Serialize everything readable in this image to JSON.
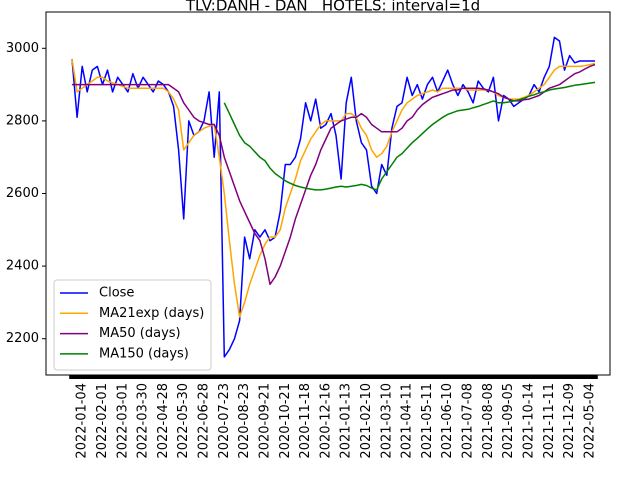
{
  "chart_data": {
    "type": "line",
    "title": "TLV:DANH - DAN   HOTELS: interval=1d",
    "categories": [
      null,
      null,
      "2022-01-04",
      null,
      null,
      null,
      "2022-02-01",
      null,
      null,
      null,
      "2022-03-01",
      null,
      null,
      null,
      "2022-03-30",
      null,
      null,
      null,
      "2022-04-28",
      null,
      null,
      null,
      "2022-05-30",
      null,
      null,
      null,
      "2022-06-28",
      null,
      null,
      null,
      "2020-07-23",
      null,
      null,
      null,
      "2020-08-23",
      null,
      null,
      null,
      "2020-09-21",
      null,
      null,
      null,
      "2020-10-21",
      null,
      null,
      null,
      "2020-11-18",
      null,
      null,
      null,
      "2020-12-16",
      null,
      null,
      null,
      "2021-01-13",
      null,
      null,
      null,
      "2021-02-10",
      null,
      null,
      null,
      "2021-03-10",
      null,
      null,
      null,
      "2021-04-11",
      null,
      null,
      null,
      "2021-05-11",
      null,
      null,
      null,
      "2021-06-10",
      null,
      null,
      null,
      "2021-07-08",
      null,
      null,
      null,
      "2021-08-08",
      null,
      null,
      null,
      "2021-09-05",
      null,
      null,
      null,
      "2021-10-14",
      null,
      null,
      null,
      "2021-11-11",
      null,
      null,
      null,
      "2021-12-09",
      null,
      null,
      null,
      "2022-05-04",
      null
    ],
    "series": [
      {
        "name": "Close",
        "color": "#0000ff",
        "values": [
          2970,
          2810,
          2950,
          2880,
          2940,
          2950,
          2900,
          2940,
          2880,
          2920,
          2900,
          2880,
          2930,
          2890,
          2920,
          2900,
          2880,
          2910,
          2900,
          2880,
          2840,
          2720,
          2530,
          2800,
          2760,
          2770,
          2800,
          2880,
          2700,
          2880,
          2150,
          2170,
          2200,
          2250,
          2480,
          2420,
          2500,
          2480,
          2500,
          2470,
          2480,
          2550,
          2680,
          2680,
          2700,
          2750,
          2850,
          2800,
          2860,
          2780,
          2790,
          2820,
          2760,
          2640,
          2850,
          2920,
          2800,
          2740,
          2720,
          2620,
          2600,
          2680,
          2650,
          2780,
          2840,
          2850,
          2920,
          2870,
          2900,
          2860,
          2900,
          2920,
          2880,
          2910,
          2940,
          2900,
          2870,
          2900,
          2880,
          2850,
          2910,
          2890,
          2880,
          2920,
          2800,
          2870,
          2860,
          2840,
          2850,
          2860,
          2870,
          2900,
          2880,
          2920,
          2950,
          3030,
          3020,
          2940,
          2980,
          2960,
          2965,
          2965,
          2965,
          2965
        ]
      },
      {
        "name": "MA21exp (days)",
        "color": "#ffa500",
        "values": [
          2970,
          2880,
          2890,
          2900,
          2910,
          2920,
          2920,
          2910,
          2905,
          2900,
          2895,
          2890,
          2890,
          2890,
          2890,
          2890,
          2890,
          2890,
          2890,
          2880,
          2860,
          2830,
          2720,
          2740,
          2760,
          2770,
          2780,
          2785,
          2790,
          2700,
          2600,
          2470,
          2350,
          2260,
          2300,
          2350,
          2390,
          2430,
          2460,
          2480,
          2480,
          2500,
          2560,
          2600,
          2640,
          2690,
          2720,
          2750,
          2770,
          2790,
          2800,
          2800,
          2800,
          2800,
          2820,
          2820,
          2810,
          2780,
          2760,
          2720,
          2700,
          2710,
          2730,
          2770,
          2800,
          2830,
          2850,
          2860,
          2870,
          2875,
          2880,
          2885,
          2880,
          2890,
          2890,
          2890,
          2890,
          2890,
          2885,
          2885,
          2885,
          2885,
          2885,
          2880,
          2870,
          2865,
          2860,
          2860,
          2860,
          2865,
          2870,
          2880,
          2890,
          2900,
          2920,
          2940,
          2950,
          2950,
          2950,
          2950,
          2950,
          2952,
          2955,
          2958
        ]
      },
      {
        "name": "MA50 (days)",
        "color": "#800080",
        "values": [
          2900,
          2900,
          2900,
          2900,
          2900,
          2900,
          2900,
          2900,
          2900,
          2900,
          2900,
          2900,
          2900,
          2900,
          2900,
          2900,
          2900,
          2900,
          2900,
          2900,
          2890,
          2880,
          2850,
          2830,
          2810,
          2800,
          2795,
          2790,
          2790,
          2760,
          2700,
          2660,
          2620,
          2580,
          2550,
          2520,
          2490,
          2470,
          2420,
          2350,
          2370,
          2400,
          2440,
          2480,
          2530,
          2570,
          2610,
          2650,
          2680,
          2720,
          2750,
          2780,
          2790,
          2800,
          2805,
          2810,
          2810,
          2820,
          2810,
          2790,
          2780,
          2770,
          2770,
          2770,
          2770,
          2780,
          2800,
          2810,
          2830,
          2845,
          2855,
          2865,
          2870,
          2875,
          2880,
          2885,
          2885,
          2890,
          2890,
          2890,
          2890,
          2888,
          2885,
          2880,
          2875,
          2865,
          2860,
          2855,
          2855,
          2858,
          2860,
          2865,
          2870,
          2880,
          2890,
          2895,
          2900,
          2910,
          2920,
          2930,
          2935,
          2943,
          2950,
          2955
        ]
      },
      {
        "name": "MA150 (days)",
        "color": "#008000",
        "values": [
          null,
          null,
          null,
          null,
          null,
          null,
          null,
          null,
          null,
          null,
          null,
          null,
          null,
          null,
          null,
          null,
          null,
          null,
          null,
          null,
          null,
          null,
          null,
          null,
          null,
          null,
          null,
          null,
          null,
          null,
          2850,
          2820,
          2790,
          2760,
          2740,
          2730,
          2715,
          2700,
          2690,
          2670,
          2655,
          2645,
          2635,
          2628,
          2622,
          2618,
          2615,
          2612,
          2610,
          2610,
          2612,
          2615,
          2618,
          2620,
          2618,
          2620,
          2622,
          2625,
          2622,
          2615,
          2610,
          2640,
          2660,
          2680,
          2700,
          2710,
          2725,
          2740,
          2752,
          2765,
          2778,
          2790,
          2800,
          2810,
          2818,
          2823,
          2828,
          2830,
          2832,
          2836,
          2840,
          2845,
          2850,
          2855,
          2850,
          2850,
          2852,
          2855,
          2858,
          2862,
          2868,
          2872,
          2877,
          2880,
          2885,
          2888,
          2890,
          2892,
          2895,
          2898,
          2900,
          2902,
          2904,
          2906
        ]
      }
    ],
    "ylim": [
      2100,
      3100
    ],
    "yticks": [
      2200,
      2400,
      2600,
      2800,
      3000
    ],
    "legend": "lower left",
    "grid": false
  }
}
